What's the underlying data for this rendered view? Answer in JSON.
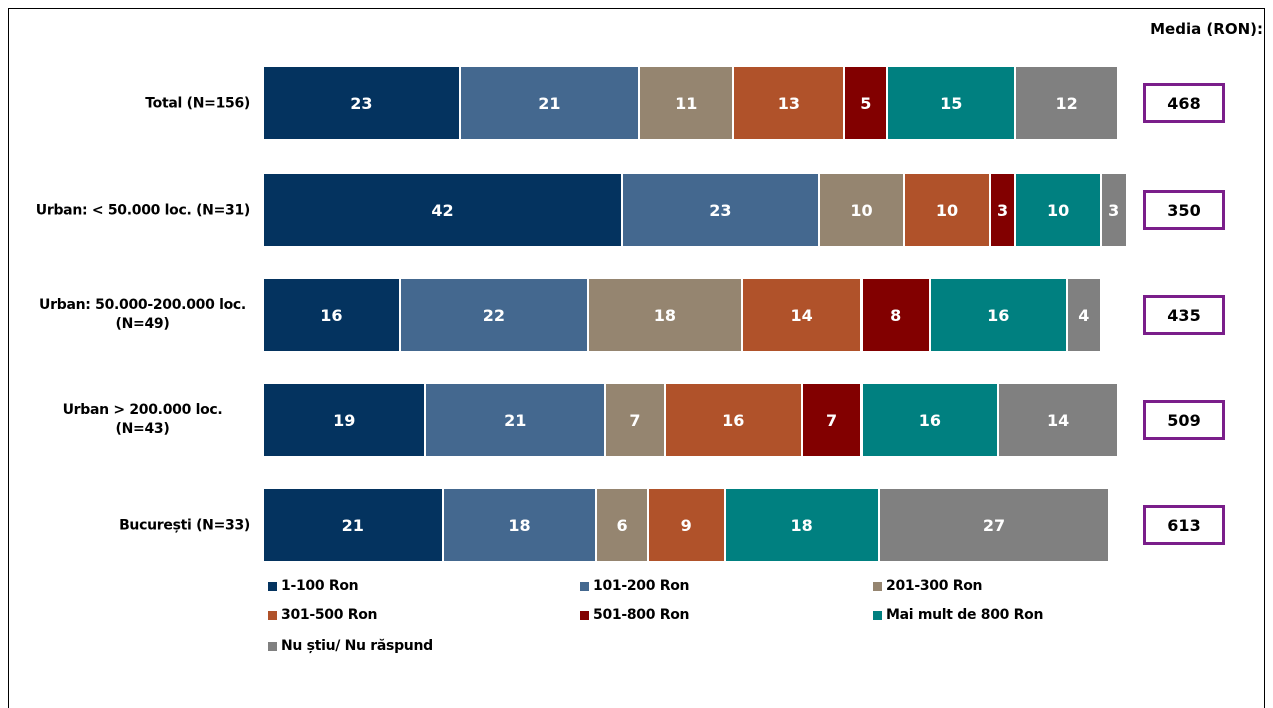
{
  "chart_data": {
    "type": "stacked-bar",
    "categories": [
      "Total (N=156)",
      "Urban: < 50.000 loc. (N=31)",
      "Urban: 50.000-200.000 loc. (N=49)",
      "Urban > 200.000 loc. (N=43)",
      "București (N=33)"
    ],
    "series": [
      {
        "name": "1-100 Ron",
        "color": "#04335f",
        "values": [
          23,
          42,
          16,
          19,
          21
        ]
      },
      {
        "name": "101-200 Ron",
        "color": "#44688f",
        "values": [
          21,
          23,
          22,
          21,
          18
        ]
      },
      {
        "name": "201-300 Ron",
        "color": "#958570",
        "values": [
          11,
          10,
          18,
          7,
          6
        ]
      },
      {
        "name": "301-500 Ron",
        "color": "#b0522a",
        "values": [
          13,
          10,
          14,
          16,
          9
        ]
      },
      {
        "name": "501-800 Ron",
        "color": "#820000",
        "values": [
          5,
          3,
          8,
          7,
          null
        ]
      },
      {
        "name": "Mai mult de 800 Ron",
        "color": "#008080",
        "values": [
          15,
          10,
          16,
          16,
          18
        ]
      },
      {
        "name": "Nu știu/ Nu răspund",
        "color": "#808080",
        "values": [
          12,
          3,
          4,
          14,
          27
        ]
      }
    ],
    "media": {
      "label": "Media (RON):",
      "values": [
        468,
        350,
        435,
        509,
        613
      ]
    }
  }
}
